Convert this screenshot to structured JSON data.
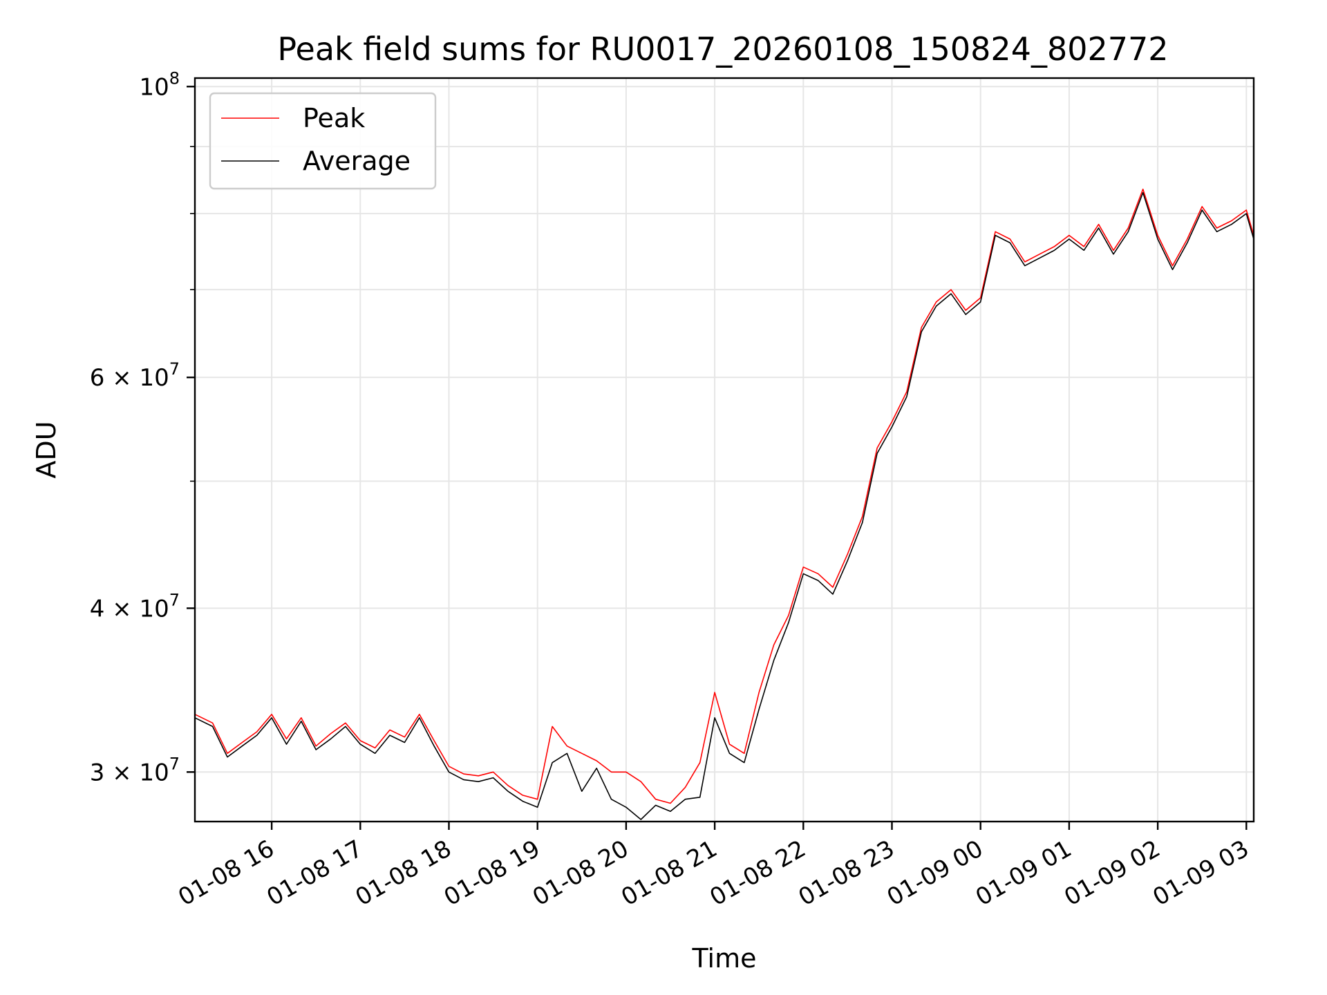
{
  "chart_data": {
    "type": "line",
    "title": "Peak field sums for RU0017_20260108_150824_802772",
    "xlabel": "Time",
    "ylabel": "ADU",
    "yscale": "log",
    "xlim": [
      "2026-01-08 15:08",
      "2026-01-09 03:05"
    ],
    "ylim": [
      27500000,
      101500000
    ],
    "grid": true,
    "legend_position": "top-left",
    "x_ticks": [
      "01-08 16",
      "01-08 17",
      "01-08 18",
      "01-08 19",
      "01-08 20",
      "01-08 21",
      "01-08 22",
      "01-08 23",
      "01-09 00",
      "01-09 01",
      "01-09 02",
      "01-09 03"
    ],
    "y_ticks": [
      {
        "value": 30000000,
        "mantissa": "3",
        "exponent": "7"
      },
      {
        "value": 40000000,
        "mantissa": "4",
        "exponent": "7"
      },
      {
        "value": 60000000,
        "mantissa": "6",
        "exponent": "7"
      },
      {
        "value": 100000000,
        "mantissa": "",
        "exponent": "8"
      }
    ],
    "y_minor_ticks": [
      50000000,
      70000000,
      80000000,
      90000000
    ],
    "x": [
      "2026-01-08 15:08",
      "2026-01-08 15:20",
      "2026-01-08 15:30",
      "2026-01-08 15:40",
      "2026-01-08 15:50",
      "2026-01-08 16:00",
      "2026-01-08 16:10",
      "2026-01-08 16:20",
      "2026-01-08 16:30",
      "2026-01-08 16:40",
      "2026-01-08 16:50",
      "2026-01-08 17:00",
      "2026-01-08 17:10",
      "2026-01-08 17:20",
      "2026-01-08 17:30",
      "2026-01-08 17:40",
      "2026-01-08 17:50",
      "2026-01-08 18:00",
      "2026-01-08 18:10",
      "2026-01-08 18:20",
      "2026-01-08 18:30",
      "2026-01-08 18:40",
      "2026-01-08 18:50",
      "2026-01-08 19:00",
      "2026-01-08 19:10",
      "2026-01-08 19:20",
      "2026-01-08 19:30",
      "2026-01-08 19:40",
      "2026-01-08 19:50",
      "2026-01-08 20:00",
      "2026-01-08 20:10",
      "2026-01-08 20:20",
      "2026-01-08 20:30",
      "2026-01-08 20:40",
      "2026-01-08 20:50",
      "2026-01-08 21:00",
      "2026-01-08 21:10",
      "2026-01-08 21:20",
      "2026-01-08 21:30",
      "2026-01-08 21:40",
      "2026-01-08 21:50",
      "2026-01-08 22:00",
      "2026-01-08 22:10",
      "2026-01-08 22:20",
      "2026-01-08 22:30",
      "2026-01-08 22:40",
      "2026-01-08 22:50",
      "2026-01-08 23:00",
      "2026-01-08 23:10",
      "2026-01-08 23:20",
      "2026-01-08 23:30",
      "2026-01-08 23:40",
      "2026-01-08 23:50",
      "2026-01-09 00:00",
      "2026-01-09 00:10",
      "2026-01-09 00:20",
      "2026-01-09 00:30",
      "2026-01-09 00:40",
      "2026-01-09 00:50",
      "2026-01-09 01:00",
      "2026-01-09 01:10",
      "2026-01-09 01:20",
      "2026-01-09 01:30",
      "2026-01-09 01:40",
      "2026-01-09 01:50",
      "2026-01-09 02:00",
      "2026-01-09 02:10",
      "2026-01-09 02:20",
      "2026-01-09 02:30",
      "2026-01-09 02:40",
      "2026-01-09 02:50",
      "2026-01-09 03:00",
      "2026-01-09 03:05"
    ],
    "series": [
      {
        "name": "Average",
        "color": "#000000",
        "values": [
          33000000,
          32500000,
          30800000,
          31400000,
          32000000,
          33000000,
          31500000,
          32800000,
          31200000,
          31800000,
          32500000,
          31500000,
          31000000,
          32000000,
          31600000,
          33000000,
          31400000,
          30000000,
          29600000,
          29500000,
          29700000,
          29000000,
          28500000,
          28200000,
          30500000,
          31000000,
          29000000,
          30200000,
          28600000,
          28200000,
          27600000,
          28300000,
          28000000,
          28600000,
          28700000,
          33000000,
          31000000,
          30500000,
          33500000,
          36500000,
          39000000,
          42500000,
          42000000,
          41000000,
          43500000,
          46500000,
          52500000,
          55000000,
          58000000,
          65000000,
          68000000,
          69500000,
          67000000,
          68500000,
          77000000,
          76000000,
          73000000,
          74000000,
          75000000,
          76500000,
          75000000,
          78000000,
          74500000,
          77500000,
          83000000,
          76500000,
          72500000,
          76000000,
          80500000,
          77500000,
          78500000,
          80000000,
          76500000
        ]
      },
      {
        "name": "Peak",
        "color": "#ff0000",
        "values": [
          33200000,
          32700000,
          31000000,
          31600000,
          32200000,
          33200000,
          31800000,
          33000000,
          31400000,
          32100000,
          32700000,
          31700000,
          31300000,
          32300000,
          31900000,
          33200000,
          31700000,
          30300000,
          29900000,
          29800000,
          30000000,
          29300000,
          28800000,
          28600000,
          32500000,
          31400000,
          31000000,
          30600000,
          30000000,
          30000000,
          29500000,
          28600000,
          28400000,
          29200000,
          30500000,
          34500000,
          31500000,
          31000000,
          34500000,
          37500000,
          39500000,
          43000000,
          42500000,
          41500000,
          44000000,
          47000000,
          53000000,
          55500000,
          58500000,
          65500000,
          68500000,
          70000000,
          67500000,
          69000000,
          77500000,
          76500000,
          73500000,
          74500000,
          75500000,
          77000000,
          75500000,
          78500000,
          75000000,
          78000000,
          83500000,
          77000000,
          73000000,
          76500000,
          81000000,
          78000000,
          79000000,
          80500000,
          77000000
        ]
      }
    ]
  }
}
